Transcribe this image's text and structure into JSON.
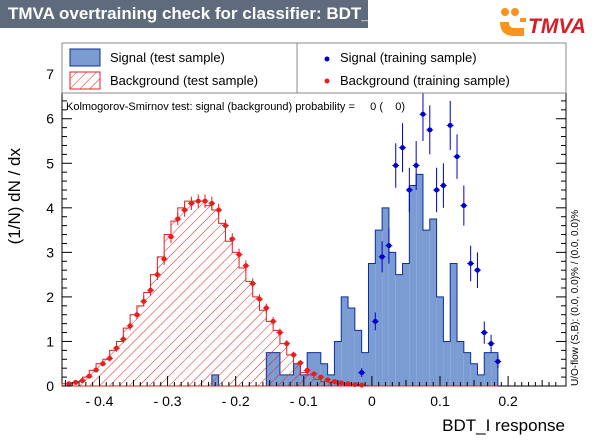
{
  "title": "TMVA overtraining check for classifier: BDT_I",
  "logo": {
    "text": "TMVA",
    "colors": {
      "orange": "#f7931e",
      "red": "#d31f26"
    }
  },
  "chart_data": {
    "type": "histogram",
    "xlabel": "BDT_I response",
    "ylabel": "(1/N) dN / dx",
    "xlim": [
      -0.455,
      0.285
    ],
    "ylim": [
      0,
      7.7
    ],
    "bin_width": 0.01,
    "x_start": -0.455,
    "xticks": [
      -0.4,
      -0.3,
      -0.2,
      -0.1,
      0,
      0.1,
      0.2
    ],
    "xtick_labels": [
      "- 0.4",
      "- 0.3",
      "- 0.2",
      "- 0.1",
      "0",
      "0.1",
      "0.2"
    ],
    "yticks": [
      0,
      1,
      2,
      3,
      4,
      5,
      6,
      7
    ],
    "ytick_labels": [
      "0",
      "1",
      "2",
      "3",
      "4",
      "5",
      "6",
      "7"
    ],
    "legend": {
      "signal_test": "Signal (test sample)",
      "background_test": "Background (test sample)",
      "signal_train": "Signal (training sample)",
      "background_train": "Background (training sample)"
    },
    "ks_text": "Kolmogorov-Smirnov test: signal (background) probability =     0 (    0)",
    "overflow_text": "U/O-flow (S,B): (0.0, 0.0)% / (0.0, 0.0)%",
    "colors": {
      "signal_fill": "#7b9bd3",
      "signal_line": "#0d2f9a",
      "signal_marker": "#0000cc",
      "background": "#e41f1f",
      "legend_border": "#888888"
    },
    "series": [
      {
        "name": "Signal (test sample)",
        "kind": "filled histogram",
        "values": [
          0,
          0,
          0,
          0,
          0,
          0,
          0,
          0,
          0,
          0,
          0,
          0,
          0,
          0,
          0,
          0,
          0,
          0,
          0,
          0,
          0,
          0,
          0.25,
          0,
          0,
          0,
          0,
          0,
          0,
          0,
          0.75,
          0.75,
          0.25,
          0.25,
          0.5,
          0.25,
          0.75,
          0.75,
          0.5,
          0.25,
          1.0,
          2.0,
          1.75,
          1.25,
          0.75,
          2.75,
          3.5,
          4.0,
          3.0,
          2.5,
          2.75,
          4.5,
          4.75,
          3.5,
          3.75,
          2.0,
          1.0,
          2.75,
          1.0,
          0.75,
          0.5,
          0.25,
          0.75,
          0.75
        ]
      },
      {
        "name": "Background (test sample)",
        "kind": "hatched histogram",
        "values": [
          0.05,
          0.07,
          0.1,
          0.2,
          0.35,
          0.5,
          0.6,
          0.8,
          1.0,
          1.3,
          1.6,
          1.8,
          2.1,
          2.5,
          2.9,
          3.4,
          3.7,
          4.0,
          4.15,
          4.15,
          4.15,
          4.05,
          3.95,
          3.65,
          3.25,
          3.0,
          2.65,
          2.35,
          2.0,
          1.7,
          1.45,
          1.25,
          0.95,
          0.7,
          0.5,
          0.3,
          0.25,
          0.15,
          0.1,
          0.08,
          0.05,
          0.04,
          0.03,
          0.02,
          0.01,
          0,
          0,
          0,
          0,
          0,
          0,
          0,
          0,
          0,
          0,
          0,
          0,
          0,
          0,
          0,
          0,
          0,
          0,
          0
        ]
      },
      {
        "name": "Signal (training sample)",
        "kind": "markers with error bars",
        "points": [
          [
            -0.015,
            0.3,
            0.1
          ],
          [
            0.005,
            1.45,
            0.2
          ],
          [
            0.015,
            2.9,
            0.35
          ],
          [
            0.025,
            3.15,
            0.4
          ],
          [
            0.035,
            4.95,
            0.5
          ],
          [
            0.045,
            5.35,
            0.55
          ],
          [
            0.055,
            4.4,
            0.5
          ],
          [
            0.065,
            4.95,
            0.55
          ],
          [
            0.075,
            6.1,
            0.6
          ],
          [
            0.085,
            5.75,
            0.55
          ],
          [
            0.095,
            4.4,
            0.5
          ],
          [
            0.105,
            4.5,
            0.5
          ],
          [
            0.115,
            5.85,
            0.55
          ],
          [
            0.125,
            5.15,
            0.5
          ],
          [
            0.135,
            4.05,
            0.45
          ],
          [
            0.145,
            2.75,
            0.4
          ],
          [
            0.155,
            2.6,
            0.4
          ],
          [
            0.165,
            1.2,
            0.25
          ],
          [
            0.175,
            0.95,
            0.2
          ],
          [
            0.185,
            0.55,
            0.15
          ]
        ]
      },
      {
        "name": "Background (training sample)",
        "kind": "markers with error bars",
        "points": [
          [
            -0.445,
            0.05,
            0.02
          ],
          [
            -0.435,
            0.08,
            0.03
          ],
          [
            -0.425,
            0.12,
            0.03
          ],
          [
            -0.415,
            0.22,
            0.04
          ],
          [
            -0.405,
            0.36,
            0.05
          ],
          [
            -0.395,
            0.5,
            0.06
          ],
          [
            -0.385,
            0.62,
            0.07
          ],
          [
            -0.375,
            0.85,
            0.08
          ],
          [
            -0.365,
            1.05,
            0.09
          ],
          [
            -0.355,
            1.35,
            0.1
          ],
          [
            -0.345,
            1.6,
            0.1
          ],
          [
            -0.335,
            1.9,
            0.11
          ],
          [
            -0.325,
            2.15,
            0.12
          ],
          [
            -0.315,
            2.5,
            0.12
          ],
          [
            -0.305,
            2.85,
            0.13
          ],
          [
            -0.295,
            3.35,
            0.14
          ],
          [
            -0.285,
            3.75,
            0.14
          ],
          [
            -0.275,
            3.95,
            0.15
          ],
          [
            -0.265,
            4.1,
            0.15
          ],
          [
            -0.255,
            4.15,
            0.15
          ],
          [
            -0.245,
            4.15,
            0.15
          ],
          [
            -0.235,
            4.1,
            0.15
          ],
          [
            -0.225,
            3.95,
            0.14
          ],
          [
            -0.215,
            3.6,
            0.14
          ],
          [
            -0.205,
            3.3,
            0.13
          ],
          [
            -0.195,
            2.95,
            0.13
          ],
          [
            -0.185,
            2.7,
            0.12
          ],
          [
            -0.175,
            2.3,
            0.12
          ],
          [
            -0.165,
            1.95,
            0.11
          ],
          [
            -0.155,
            1.75,
            0.1
          ],
          [
            -0.145,
            1.45,
            0.1
          ],
          [
            -0.135,
            1.2,
            0.09
          ],
          [
            -0.125,
            0.95,
            0.08
          ],
          [
            -0.115,
            0.7,
            0.07
          ],
          [
            -0.105,
            0.52,
            0.06
          ],
          [
            -0.095,
            0.35,
            0.05
          ],
          [
            -0.085,
            0.27,
            0.04
          ],
          [
            -0.075,
            0.2,
            0.04
          ],
          [
            -0.065,
            0.14,
            0.03
          ],
          [
            -0.055,
            0.1,
            0.03
          ],
          [
            -0.045,
            0.07,
            0.02
          ],
          [
            -0.035,
            0.05,
            0.02
          ],
          [
            -0.025,
            0.03,
            0.02
          ],
          [
            -0.015,
            0.02,
            0.01
          ]
        ]
      }
    ]
  }
}
